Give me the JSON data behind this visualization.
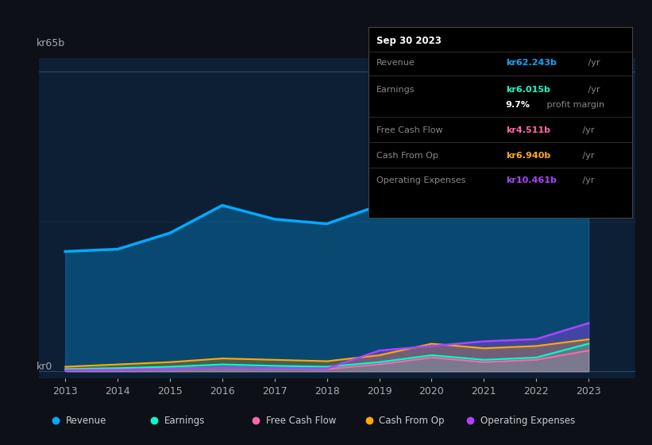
{
  "bg_color": "#0d1117",
  "chart_bg": "#0d1f35",
  "ylabel": "kr65b",
  "y0_label": "kr0",
  "x_ticks": [
    2013,
    2014,
    2015,
    2016,
    2017,
    2018,
    2019,
    2020,
    2021,
    2022,
    2023
  ],
  "tooltip": {
    "date": "Sep 30 2023",
    "revenue_val": "kr62.243b",
    "earnings_val": "kr6.015b",
    "margin": "9.7%",
    "margin_label": "profit margin",
    "fcf_val": "kr4.511b",
    "cashfromop_val": "kr6.940b",
    "opex_val": "kr10.461b"
  },
  "revenue_color": "#00aaff",
  "earnings_color": "#00ffcc",
  "fcf_color": "#ff66aa",
  "cashfromop_color": "#ffaa00",
  "opex_color": "#aa44ff",
  "legend_items": [
    {
      "label": "Revenue",
      "color": "#00aaff"
    },
    {
      "label": "Earnings",
      "color": "#00ffcc"
    },
    {
      "label": "Free Cash Flow",
      "color": "#ff66aa"
    },
    {
      "label": "Cash From Op",
      "color": "#ffaa00"
    },
    {
      "label": "Operating Expenses",
      "color": "#aa44ff"
    }
  ],
  "revenue": [
    26.0,
    26.5,
    30.0,
    36.0,
    33.0,
    32.0,
    36.0,
    42.0,
    38.0,
    44.0,
    62.243
  ],
  "earnings": [
    0.5,
    0.7,
    1.0,
    1.5,
    1.2,
    1.0,
    2.0,
    3.5,
    2.5,
    3.0,
    6.015
  ],
  "fcf": [
    0.3,
    0.4,
    0.6,
    0.8,
    0.7,
    0.5,
    1.5,
    3.0,
    2.0,
    2.5,
    4.511
  ],
  "cashfromop": [
    1.0,
    1.5,
    2.0,
    2.8,
    2.5,
    2.2,
    3.5,
    6.0,
    5.0,
    5.5,
    6.94
  ],
  "opex": [
    0.2,
    0.3,
    0.5,
    0.8,
    0.7,
    0.6,
    4.5,
    5.5,
    6.5,
    7.0,
    10.461
  ],
  "years": [
    2013,
    2014,
    2015,
    2016,
    2017,
    2018,
    2019,
    2020,
    2021,
    2022,
    2023
  ]
}
